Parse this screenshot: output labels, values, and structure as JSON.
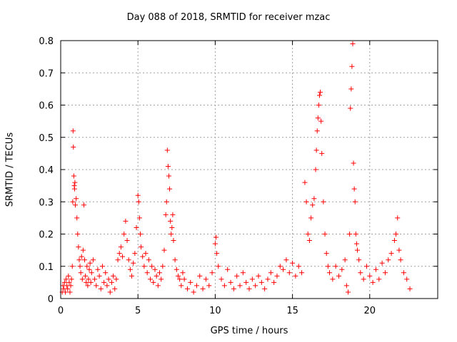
{
  "chart_data": {
    "type": "scatter",
    "title": "Day 088 of 2018, SRMTID for receiver mzac",
    "xlabel": "GPS time / hours",
    "ylabel": "SRMTID / TECUs",
    "xlim": [
      0,
      24.4
    ],
    "ylim": [
      0,
      0.8
    ],
    "xticks": [
      0,
      5,
      10,
      15,
      20
    ],
    "yticks": [
      0,
      0.1,
      0.2,
      0.3,
      0.4,
      0.5,
      0.6,
      0.7,
      0.8
    ],
    "ytick_labels": [
      "0",
      "0.1",
      "0.2",
      "0.3",
      "0.4",
      "0.5",
      "0.6",
      "0.7",
      "0.8"
    ],
    "grid": true,
    "marker": "+",
    "color": "#ff0000",
    "series": [
      {
        "name": "SRMTID",
        "points": [
          [
            0.1,
            0.02
          ],
          [
            0.15,
            0.04
          ],
          [
            0.2,
            0.03
          ],
          [
            0.25,
            0.05
          ],
          [
            0.3,
            0.02
          ],
          [
            0.35,
            0.06
          ],
          [
            0.4,
            0.04
          ],
          [
            0.45,
            0.03
          ],
          [
            0.5,
            0.07
          ],
          [
            0.55,
            0.05
          ],
          [
            0.6,
            0.02
          ],
          [
            0.65,
            0.04
          ],
          [
            0.7,
            0.06
          ],
          [
            0.75,
            0.1
          ],
          [
            0.78,
            0.3
          ],
          [
            0.8,
            0.52
          ],
          [
            0.82,
            0.47
          ],
          [
            0.85,
            0.38
          ],
          [
            0.88,
            0.35
          ],
          [
            0.9,
            0.34
          ],
          [
            0.92,
            0.36
          ],
          [
            0.95,
            0.29
          ],
          [
            1.0,
            0.31
          ],
          [
            1.05,
            0.25
          ],
          [
            1.1,
            0.2
          ],
          [
            1.15,
            0.16
          ],
          [
            1.2,
            0.12
          ],
          [
            1.25,
            0.1
          ],
          [
            1.3,
            0.08
          ],
          [
            1.35,
            0.13
          ],
          [
            1.4,
            0.06
          ],
          [
            1.45,
            0.15
          ],
          [
            1.5,
            0.29
          ],
          [
            1.55,
            0.12
          ],
          [
            1.6,
            0.07
          ],
          [
            1.65,
            0.05
          ],
          [
            1.7,
            0.1
          ],
          [
            1.75,
            0.04
          ],
          [
            1.8,
            0.06
          ],
          [
            1.85,
            0.09
          ],
          [
            1.9,
            0.11
          ],
          [
            1.95,
            0.05
          ],
          [
            2.0,
            0.08
          ],
          [
            2.1,
            0.12
          ],
          [
            2.2,
            0.06
          ],
          [
            2.3,
            0.04
          ],
          [
            2.4,
            0.09
          ],
          [
            2.5,
            0.07
          ],
          [
            2.6,
            0.03
          ],
          [
            2.7,
            0.1
          ],
          [
            2.8,
            0.05
          ],
          [
            2.9,
            0.08
          ],
          [
            3.0,
            0.04
          ],
          [
            3.1,
            0.06
          ],
          [
            3.2,
            0.02
          ],
          [
            3.3,
            0.05
          ],
          [
            3.4,
            0.07
          ],
          [
            3.5,
            0.03
          ],
          [
            3.6,
            0.06
          ],
          [
            3.7,
            0.12
          ],
          [
            3.8,
            0.14
          ],
          [
            3.9,
            0.16
          ],
          [
            4.0,
            0.13
          ],
          [
            4.1,
            0.2
          ],
          [
            4.2,
            0.24
          ],
          [
            4.3,
            0.18
          ],
          [
            4.4,
            0.12
          ],
          [
            4.5,
            0.09
          ],
          [
            4.6,
            0.07
          ],
          [
            4.7,
            0.11
          ],
          [
            4.8,
            0.14
          ],
          [
            4.9,
            0.22
          ],
          [
            5.0,
            0.32
          ],
          [
            5.05,
            0.3
          ],
          [
            5.1,
            0.25
          ],
          [
            5.15,
            0.2
          ],
          [
            5.2,
            0.16
          ],
          [
            5.3,
            0.13
          ],
          [
            5.4,
            0.1
          ],
          [
            5.5,
            0.14
          ],
          [
            5.6,
            0.08
          ],
          [
            5.7,
            0.12
          ],
          [
            5.8,
            0.06
          ],
          [
            5.9,
            0.1
          ],
          [
            6.0,
            0.05
          ],
          [
            6.1,
            0.09
          ],
          [
            6.2,
            0.07
          ],
          [
            6.3,
            0.04
          ],
          [
            6.4,
            0.08
          ],
          [
            6.5,
            0.06
          ],
          [
            6.6,
            0.1
          ],
          [
            6.7,
            0.15
          ],
          [
            6.8,
            0.26
          ],
          [
            6.85,
            0.3
          ],
          [
            6.9,
            0.46
          ],
          [
            6.95,
            0.41
          ],
          [
            7.0,
            0.38
          ],
          [
            7.05,
            0.34
          ],
          [
            7.1,
            0.24
          ],
          [
            7.15,
            0.2
          ],
          [
            7.2,
            0.22
          ],
          [
            7.25,
            0.26
          ],
          [
            7.3,
            0.18
          ],
          [
            7.4,
            0.12
          ],
          [
            7.5,
            0.09
          ],
          [
            7.6,
            0.07
          ],
          [
            7.7,
            0.06
          ],
          [
            7.8,
            0.04
          ],
          [
            7.9,
            0.08
          ],
          [
            8.0,
            0.06
          ],
          [
            8.2,
            0.03
          ],
          [
            8.4,
            0.05
          ],
          [
            8.6,
            0.02
          ],
          [
            8.8,
            0.04
          ],
          [
            9.0,
            0.07
          ],
          [
            9.2,
            0.03
          ],
          [
            9.4,
            0.06
          ],
          [
            9.6,
            0.04
          ],
          [
            9.8,
            0.08
          ],
          [
            10.0,
            0.17
          ],
          [
            10.05,
            0.19
          ],
          [
            10.1,
            0.14
          ],
          [
            10.2,
            0.1
          ],
          [
            10.4,
            0.06
          ],
          [
            10.6,
            0.04
          ],
          [
            10.8,
            0.09
          ],
          [
            11.0,
            0.05
          ],
          [
            11.2,
            0.03
          ],
          [
            11.4,
            0.07
          ],
          [
            11.6,
            0.04
          ],
          [
            11.8,
            0.08
          ],
          [
            12.0,
            0.05
          ],
          [
            12.2,
            0.03
          ],
          [
            12.4,
            0.06
          ],
          [
            12.6,
            0.04
          ],
          [
            12.8,
            0.07
          ],
          [
            13.0,
            0.05
          ],
          [
            13.2,
            0.03
          ],
          [
            13.4,
            0.06
          ],
          [
            13.6,
            0.08
          ],
          [
            13.8,
            0.05
          ],
          [
            14.0,
            0.07
          ],
          [
            14.2,
            0.1
          ],
          [
            14.4,
            0.09
          ],
          [
            14.6,
            0.12
          ],
          [
            14.8,
            0.08
          ],
          [
            15.0,
            0.11
          ],
          [
            15.2,
            0.07
          ],
          [
            15.4,
            0.1
          ],
          [
            15.6,
            0.08
          ],
          [
            15.8,
            0.36
          ],
          [
            15.9,
            0.3
          ],
          [
            16.0,
            0.2
          ],
          [
            16.1,
            0.18
          ],
          [
            16.2,
            0.25
          ],
          [
            16.3,
            0.29
          ],
          [
            16.4,
            0.31
          ],
          [
            16.5,
            0.4
          ],
          [
            16.55,
            0.46
          ],
          [
            16.6,
            0.52
          ],
          [
            16.65,
            0.56
          ],
          [
            16.7,
            0.6
          ],
          [
            16.75,
            0.63
          ],
          [
            16.8,
            0.64
          ],
          [
            16.85,
            0.55
          ],
          [
            16.9,
            0.45
          ],
          [
            17.0,
            0.3
          ],
          [
            17.1,
            0.2
          ],
          [
            17.2,
            0.14
          ],
          [
            17.3,
            0.1
          ],
          [
            17.4,
            0.08
          ],
          [
            17.6,
            0.06
          ],
          [
            17.8,
            0.1
          ],
          [
            18.0,
            0.07
          ],
          [
            18.2,
            0.09
          ],
          [
            18.4,
            0.12
          ],
          [
            18.5,
            0.04
          ],
          [
            18.6,
            0.02
          ],
          [
            18.7,
            0.2
          ],
          [
            18.75,
            0.59
          ],
          [
            18.8,
            0.65
          ],
          [
            18.85,
            0.72
          ],
          [
            18.9,
            0.79
          ],
          [
            18.95,
            0.42
          ],
          [
            19.0,
            0.34
          ],
          [
            19.05,
            0.3
          ],
          [
            19.1,
            0.2
          ],
          [
            19.15,
            0.17
          ],
          [
            19.2,
            0.15
          ],
          [
            19.3,
            0.12
          ],
          [
            19.4,
            0.08
          ],
          [
            19.6,
            0.06
          ],
          [
            19.8,
            0.1
          ],
          [
            20.0,
            0.07
          ],
          [
            20.2,
            0.05
          ],
          [
            20.4,
            0.09
          ],
          [
            20.6,
            0.06
          ],
          [
            20.8,
            0.11
          ],
          [
            21.0,
            0.08
          ],
          [
            21.2,
            0.12
          ],
          [
            21.4,
            0.14
          ],
          [
            21.6,
            0.18
          ],
          [
            21.7,
            0.2
          ],
          [
            21.8,
            0.25
          ],
          [
            21.9,
            0.15
          ],
          [
            22.0,
            0.12
          ],
          [
            22.2,
            0.08
          ],
          [
            22.4,
            0.06
          ],
          [
            22.6,
            0.03
          ]
        ]
      }
    ]
  }
}
